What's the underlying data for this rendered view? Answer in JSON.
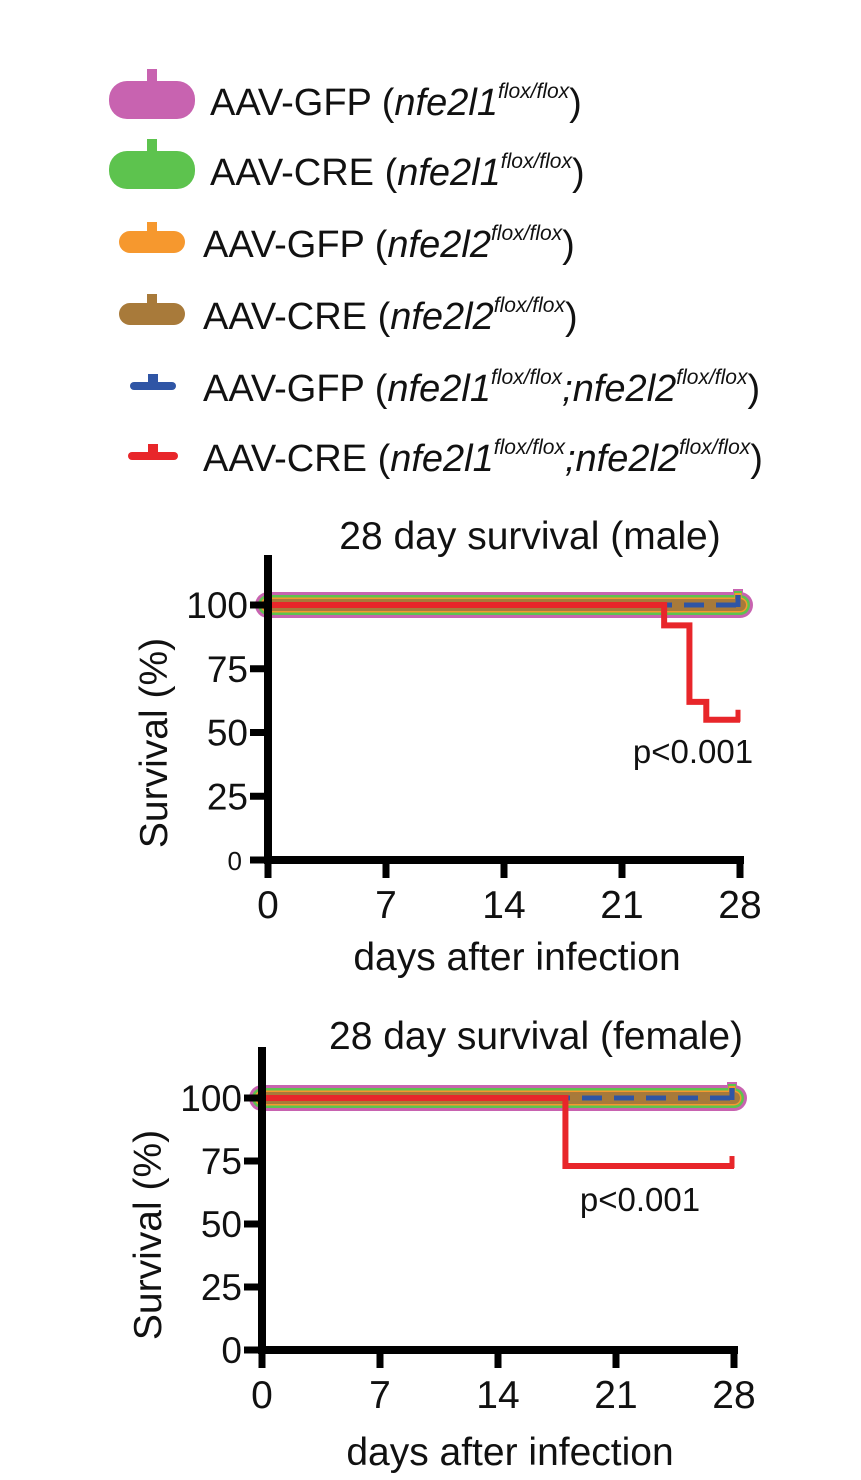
{
  "legend": [
    {
      "prefix": "AAV-GFP (",
      "gene1": "nfe2l1",
      "sup1": "flox/flox",
      "sep": "",
      "gene2": "",
      "sup2": "",
      "suffix": ")",
      "color": "#c863b0"
    },
    {
      "prefix": "AAV-CRE (",
      "gene1": "nfe2l1",
      "sup1": "flox/flox",
      "sep": "",
      "gene2": "",
      "sup2": "",
      "suffix": ")",
      "color": "#5dc34e"
    },
    {
      "prefix": "AAV-GFP (",
      "gene1": "nfe2l2",
      "sup1": "flox/flox",
      "sep": "",
      "gene2": "",
      "sup2": "",
      "suffix": ")",
      "color": "#f6982e"
    },
    {
      "prefix": "AAV-CRE (",
      "gene1": "nfe2l2",
      "sup1": "flox/flox",
      "sep": "",
      "gene2": "",
      "sup2": "",
      "suffix": ")",
      "color": "#a87a3a"
    },
    {
      "prefix": "AAV-GFP (",
      "gene1": "nfe2l1",
      "sup1": "flox/flox",
      "sep": ";",
      "gene2": "nfe2l2",
      "sup2": "flox/flox",
      "suffix": ")",
      "color": "#2f55a5"
    },
    {
      "prefix": "AAV-CRE (",
      "gene1": "nfe2l1",
      "sup1": "flox/flox",
      "sep": ";",
      "gene2": "nfe2l2",
      "sup2": "flox/flox",
      "suffix": ")",
      "color": "#e8262a"
    }
  ],
  "chart_data": [
    {
      "type": "line",
      "title": "28 day survival (male)",
      "xlabel": "days after infection",
      "ylabel": "Survival (%)",
      "xlim": [
        0,
        28
      ],
      "ylim": [
        0,
        100
      ],
      "xticks": [
        "0",
        "7",
        "14",
        "21",
        "28"
      ],
      "yticks": [
        "0",
        "25",
        "50",
        "75",
        "100"
      ],
      "annotation": "p<0.001",
      "series": [
        {
          "name": "AAV-GFP (nfe2l1 flox/flox)",
          "color": "#c863b0",
          "x": [
            0,
            28
          ],
          "y": [
            100,
            100
          ]
        },
        {
          "name": "AAV-CRE (nfe2l1 flox/flox)",
          "color": "#5dc34e",
          "x": [
            0,
            28
          ],
          "y": [
            100,
            100
          ]
        },
        {
          "name": "AAV-GFP (nfe2l2 flox/flox)",
          "color": "#f6982e",
          "x": [
            0,
            28
          ],
          "y": [
            100,
            100
          ]
        },
        {
          "name": "AAV-CRE (nfe2l2 flox/flox)",
          "color": "#a87a3a",
          "x": [
            0,
            28
          ],
          "y": [
            100,
            100
          ]
        },
        {
          "name": "AAV-GFP (nfe2l1 flox/flox;nfe2l2 flox/flox)",
          "color": "#2f55a5",
          "x": [
            0,
            28
          ],
          "y": [
            100,
            100
          ]
        },
        {
          "name": "AAV-CRE (nfe2l1 flox/flox;nfe2l2 flox/flox)",
          "color": "#e8262a",
          "x": [
            0,
            23.5,
            23.5,
            25,
            25,
            26,
            26,
            28
          ],
          "y": [
            100,
            100,
            92,
            92,
            62,
            62,
            55,
            55
          ]
        }
      ]
    },
    {
      "type": "line",
      "title": "28 day survival (female)",
      "xlabel": "days after infection",
      "ylabel": "Survival (%)",
      "xlim": [
        0,
        28
      ],
      "ylim": [
        0,
        100
      ],
      "xticks": [
        "0",
        "7",
        "14",
        "21",
        "28"
      ],
      "yticks": [
        "0",
        "25",
        "50",
        "75",
        "100"
      ],
      "annotation": "p<0.001",
      "series": [
        {
          "name": "AAV-GFP (nfe2l1 flox/flox)",
          "color": "#c863b0",
          "x": [
            0,
            28
          ],
          "y": [
            100,
            100
          ]
        },
        {
          "name": "AAV-CRE (nfe2l1 flox/flox)",
          "color": "#5dc34e",
          "x": [
            0,
            28
          ],
          "y": [
            100,
            100
          ]
        },
        {
          "name": "AAV-GFP (nfe2l2 flox/flox)",
          "color": "#f6982e",
          "x": [
            0,
            28
          ],
          "y": [
            100,
            100
          ]
        },
        {
          "name": "AAV-CRE (nfe2l2 flox/flox)",
          "color": "#a87a3a",
          "x": [
            0,
            28
          ],
          "y": [
            100,
            100
          ]
        },
        {
          "name": "AAV-GFP (nfe2l1 flox/flox;nfe2l2 flox/flox)",
          "color": "#2f55a5",
          "x": [
            0,
            28
          ],
          "y": [
            100,
            100
          ]
        },
        {
          "name": "AAV-CRE (nfe2l1 flox/flox;nfe2l2 flox/flox)",
          "color": "#e8262a",
          "x": [
            0,
            18,
            18,
            28
          ],
          "y": [
            100,
            100,
            73,
            73
          ]
        }
      ]
    }
  ]
}
